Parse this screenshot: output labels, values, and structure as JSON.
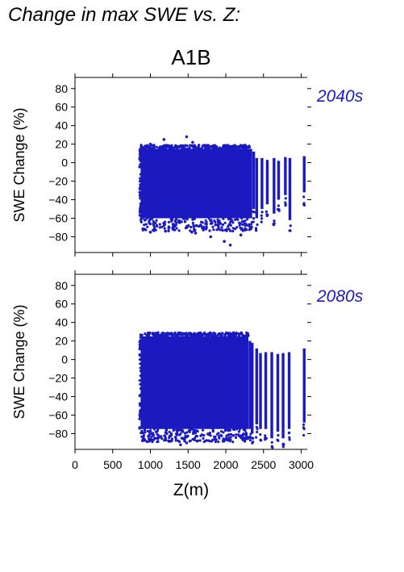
{
  "page_title": "Change in max SWE vs. Z:",
  "scenario": "A1B",
  "x_axis_label": "Z(m)",
  "x_ticks": [
    "0",
    "500",
    "1000",
    "1500",
    "2000",
    "2500",
    "3000"
  ],
  "y_ticks": [
    "80",
    "60",
    "40",
    "20",
    "0",
    "−20",
    "−40",
    "−60",
    "−80"
  ],
  "colors": {
    "points": "#1a1ac0",
    "panel_label": "#1a1ac0",
    "axes": "#000000"
  },
  "chart_data": [
    {
      "type": "scatter",
      "panel_label": "2040s",
      "ylabel": "SWE Change (%)",
      "xlim": [
        0,
        3080
      ],
      "ylim": [
        -97,
        92
      ],
      "xticks": [
        0,
        500,
        1000,
        1500,
        2000,
        2500,
        3000
      ],
      "yticks": [
        80,
        60,
        40,
        20,
        0,
        -20,
        -40,
        -60,
        -80
      ],
      "dense_band": {
        "x_range": [
          870,
          2350
        ],
        "y_range": [
          -60,
          15
        ]
      },
      "extreme_points": [
        [
          1000,
          20
        ],
        [
          1180,
          25
        ],
        [
          1300,
          16
        ],
        [
          1420,
          17
        ],
        [
          1480,
          28
        ],
        [
          1560,
          22
        ],
        [
          1250,
          18
        ],
        [
          1550,
          -75
        ],
        [
          1800,
          -80
        ],
        [
          1980,
          -85
        ],
        [
          2060,
          -89
        ],
        [
          2200,
          -78
        ],
        [
          1000,
          -75
        ],
        [
          1200,
          -74
        ],
        [
          1600,
          -76
        ]
      ],
      "sparse_columns": [
        {
          "x": 2370,
          "ymin": -50,
          "ymax": 12
        },
        {
          "x": 2410,
          "ymin": -60,
          "ymax": 5
        },
        {
          "x": 2480,
          "ymin": -50,
          "ymax": 5
        },
        {
          "x": 2550,
          "ymin": -45,
          "ymax": 3
        },
        {
          "x": 2640,
          "ymin": -55,
          "ymax": 5
        },
        {
          "x": 2700,
          "ymin": -40,
          "ymax": 2
        },
        {
          "x": 2790,
          "ymin": -35,
          "ymax": 6
        },
        {
          "x": 2850,
          "ymin": -62,
          "ymax": 5
        },
        {
          "x": 3040,
          "ymin": -32,
          "ymax": 7
        }
      ]
    },
    {
      "type": "scatter",
      "panel_label": "2080s",
      "ylabel": "SWE Change (%)",
      "xlim": [
        0,
        3080
      ],
      "ylim": [
        -97,
        92
      ],
      "xticks": [
        0,
        500,
        1000,
        1500,
        2000,
        2500,
        3000
      ],
      "yticks": [
        80,
        60,
        40,
        20,
        0,
        -20,
        -40,
        -60,
        -80
      ],
      "dense_band": {
        "x_range": [
          870,
          2300
        ],
        "y_range": [
          -75,
          25
        ]
      },
      "extreme_points": [
        [
          1100,
          29
        ],
        [
          1300,
          27
        ],
        [
          1450,
          28
        ],
        [
          1600,
          27
        ],
        [
          1850,
          24
        ],
        [
          1000,
          -80
        ],
        [
          1200,
          -85
        ],
        [
          1400,
          -92
        ],
        [
          1480,
          -90
        ],
        [
          1620,
          -88
        ],
        [
          1850,
          -86
        ],
        [
          2030,
          -87
        ],
        [
          2100,
          -82
        ],
        [
          2200,
          -84
        ]
      ],
      "sparse_columns": [
        {
          "x": 2320,
          "ymin": -75,
          "ymax": 20
        },
        {
          "x": 2350,
          "ymin": -80,
          "ymax": 18
        },
        {
          "x": 2410,
          "ymin": -70,
          "ymax": 12
        },
        {
          "x": 2460,
          "ymin": -75,
          "ymax": 7
        },
        {
          "x": 2530,
          "ymin": -75,
          "ymax": 8
        },
        {
          "x": 2610,
          "ymin": -85,
          "ymax": 8
        },
        {
          "x": 2690,
          "ymin": -78,
          "ymax": 6
        },
        {
          "x": 2760,
          "ymin": -85,
          "ymax": 7
        },
        {
          "x": 2840,
          "ymin": -75,
          "ymax": 8
        },
        {
          "x": 3040,
          "ymin": -68,
          "ymax": 12
        }
      ]
    }
  ]
}
